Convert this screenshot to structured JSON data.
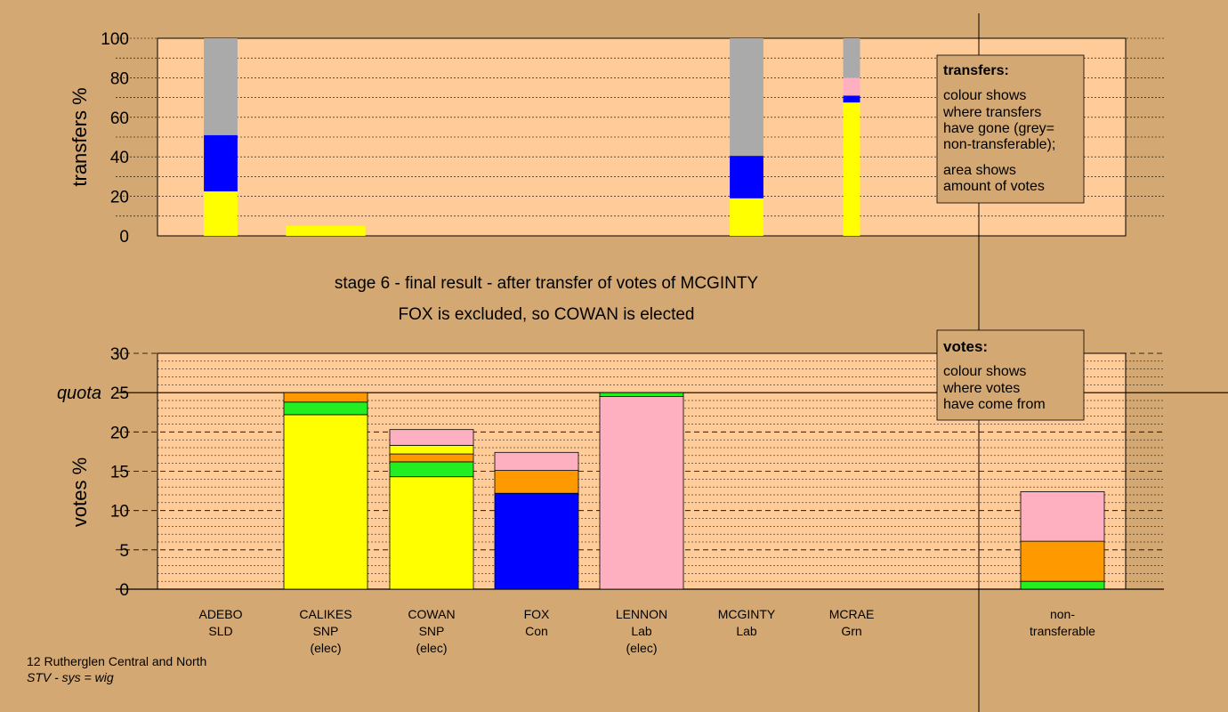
{
  "title": {
    "line1": "stage 6 - final result - after transfer of votes of MCGINTY",
    "line2": "FOX is excluded, so COWAN is elected"
  },
  "footer": {
    "line1": "12 Rutherglen Central and North",
    "line2": "STV - sys = wig"
  },
  "legend_transfers": {
    "title": "transfers:",
    "lines": [
      "colour shows",
      "where transfers",
      "have gone (grey=",
      "non-transferable);",
      "area shows",
      "amount of votes"
    ]
  },
  "legend_votes": {
    "title": "votes:",
    "lines": [
      "colour shows",
      "where votes",
      "have come from"
    ]
  },
  "colors": {
    "background": "#d4a872",
    "plot_bg": "#ffcc99",
    "yellow": "#ffff00",
    "blue": "#0000ff",
    "green": "#22ee22",
    "orange": "#ff9900",
    "pink": "#ffb0c0",
    "grey": "#aaaaaa"
  },
  "chart_data": [
    {
      "type": "bar",
      "name": "transfers",
      "ylabel": "transfers %",
      "ylim": [
        0,
        100
      ],
      "yticks": [
        0,
        20,
        40,
        60,
        80,
        100
      ],
      "note": "bar width is proportional to amount of votes transferred",
      "bars": [
        {
          "candidate": "ADEBO",
          "width_share": 0.36,
          "segments": [
            {
              "color": "yellow",
              "value": 22.5
            },
            {
              "color": "blue",
              "value": 28.5
            },
            {
              "color": "grey",
              "value": 49
            }
          ]
        },
        {
          "candidate": "CALIKES",
          "width_share": 0.85,
          "segments": [
            {
              "color": "yellow",
              "value": 5
            }
          ]
        },
        {
          "candidate": "LENNON",
          "width_share": 0.36,
          "segments": [
            {
              "color": "yellow",
              "value": 19
            },
            {
              "color": "blue",
              "value": 21.5
            },
            {
              "color": "grey",
              "value": 59.5
            }
          ]
        },
        {
          "candidate": "MCGINTY",
          "width_share": 0.18,
          "segments": [
            {
              "color": "yellow",
              "value": 67.5
            },
            {
              "color": "blue",
              "value": 3.5
            },
            {
              "color": "pink",
              "value": 9
            },
            {
              "color": "grey",
              "value": 20
            }
          ]
        }
      ]
    },
    {
      "type": "bar",
      "name": "votes",
      "ylabel": "votes %",
      "ylim": [
        0,
        30
      ],
      "yticks": [
        0,
        5,
        10,
        15,
        20,
        25,
        30
      ],
      "quota": 25,
      "quota_label": "quota",
      "bars": [
        {
          "candidate": "ADEBO",
          "segments": []
        },
        {
          "candidate": "CALIKES",
          "segments": [
            {
              "color": "yellow",
              "value": 22.2
            },
            {
              "color": "green",
              "value": 1.6
            },
            {
              "color": "orange",
              "value": 1.2
            }
          ]
        },
        {
          "candidate": "COWAN",
          "segments": [
            {
              "color": "yellow",
              "value": 14.3
            },
            {
              "color": "green",
              "value": 1.9
            },
            {
              "color": "orange",
              "value": 1.0
            },
            {
              "color": "yellow",
              "value": 1.1
            },
            {
              "color": "pink",
              "value": 2.0
            }
          ]
        },
        {
          "candidate": "FOX",
          "segments": [
            {
              "color": "blue",
              "value": 12.2
            },
            {
              "color": "orange",
              "value": 2.9
            },
            {
              "color": "pink",
              "value": 2.3
            }
          ]
        },
        {
          "candidate": "LENNON",
          "segments": [
            {
              "color": "pink",
              "value": 24.5
            },
            {
              "color": "green",
              "value": 0.5
            }
          ]
        },
        {
          "candidate": "MCGINTY",
          "segments": []
        },
        {
          "candidate": "MCRAE",
          "segments": []
        },
        {
          "candidate": "non-transferable",
          "segments": [
            {
              "color": "green",
              "value": 1.0
            },
            {
              "color": "orange",
              "value": 5.1
            },
            {
              "color": "pink",
              "value": 6.3
            }
          ]
        }
      ]
    }
  ],
  "candidates": [
    {
      "lines": [
        "ADEBO",
        "SLD"
      ]
    },
    {
      "lines": [
        "CALIKES",
        "SNP",
        "(elec)"
      ]
    },
    {
      "lines": [
        "COWAN",
        "SNP",
        "(elec)"
      ]
    },
    {
      "lines": [
        "FOX",
        "Con"
      ]
    },
    {
      "lines": [
        "LENNON",
        "Lab",
        "(elec)"
      ]
    },
    {
      "lines": [
        "MCGINTY",
        "Lab"
      ]
    },
    {
      "lines": [
        "MCRAE",
        "Grn"
      ]
    },
    {
      "lines": [
        "non-",
        "transferable"
      ]
    }
  ]
}
